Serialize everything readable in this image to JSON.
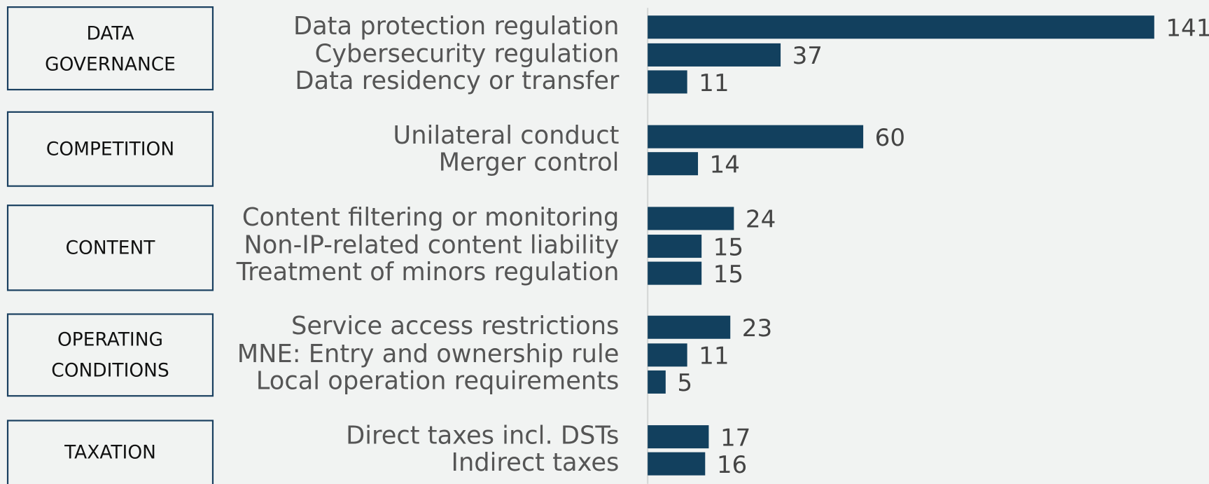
{
  "chart_data": {
    "type": "bar",
    "orientation": "horizontal",
    "color": "#12405e",
    "groups": [
      {
        "name": "DATA GOVERNANCE",
        "categories": [
          "Data protection regulation",
          "Cybersecurity regulation",
          "Data residency or transfer"
        ],
        "values": [
          141,
          37,
          11
        ]
      },
      {
        "name": "COMPETITION",
        "categories": [
          "Unilateral conduct",
          "Merger control"
        ],
        "values": [
          60,
          14
        ]
      },
      {
        "name": "CONTENT",
        "categories": [
          "Content filtering or monitoring",
          "Non-IP-related content liability",
          "Treatment of minors regulation"
        ],
        "values": [
          24,
          15,
          15
        ]
      },
      {
        "name": "OPERATING CONDITIONS",
        "categories": [
          "Service access restrictions",
          "MNE: Entry and ownership rule",
          "Local operation requirements"
        ],
        "values": [
          23,
          11,
          5
        ]
      },
      {
        "name": "TAXATION",
        "categories": [
          "Direct taxes incl. DSTs",
          "Indirect taxes"
        ],
        "values": [
          17,
          16
        ]
      }
    ]
  }
}
